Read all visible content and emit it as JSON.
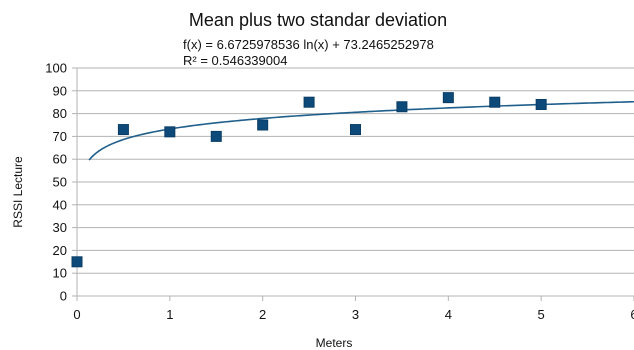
{
  "chart_data": {
    "type": "scatter",
    "title": "Mean plus two standar deviation",
    "annotations": [
      "f(x) = 6.6725978536 ln(x) + 73.2465252978",
      "R² = 0.546339004"
    ],
    "xlabel": "Meters",
    "ylabel": "RSSI Lecture",
    "xlim": [
      0,
      6
    ],
    "ylim": [
      0,
      100
    ],
    "x_ticks": [
      "0",
      "1",
      "2",
      "3",
      "4",
      "5",
      "6"
    ],
    "y_ticks": [
      "0",
      "10",
      "20",
      "30",
      "40",
      "50",
      "60",
      "70",
      "80",
      "90",
      "100"
    ],
    "grid": "horizontal",
    "legend": "none",
    "series": [
      {
        "marker": "square",
        "color": "#0d4a7a",
        "points": [
          {
            "x": 0,
            "y": 15
          },
          {
            "x": 0.5,
            "y": 73
          },
          {
            "x": 1,
            "y": 72
          },
          {
            "x": 1.5,
            "y": 70
          },
          {
            "x": 2,
            "y": 75
          },
          {
            "x": 2.5,
            "y": 85
          },
          {
            "x": 3,
            "y": 73
          },
          {
            "x": 3.5,
            "y": 83
          },
          {
            "x": 4,
            "y": 87
          },
          {
            "x": 4.5,
            "y": 85
          },
          {
            "x": 5,
            "y": 84
          }
        ]
      }
    ],
    "trendline": {
      "type": "logarithmic",
      "a": 6.6725978536,
      "b": 73.2465252978,
      "x_start": 0.13,
      "x_end": 6,
      "color": "#1f5f8b"
    }
  }
}
